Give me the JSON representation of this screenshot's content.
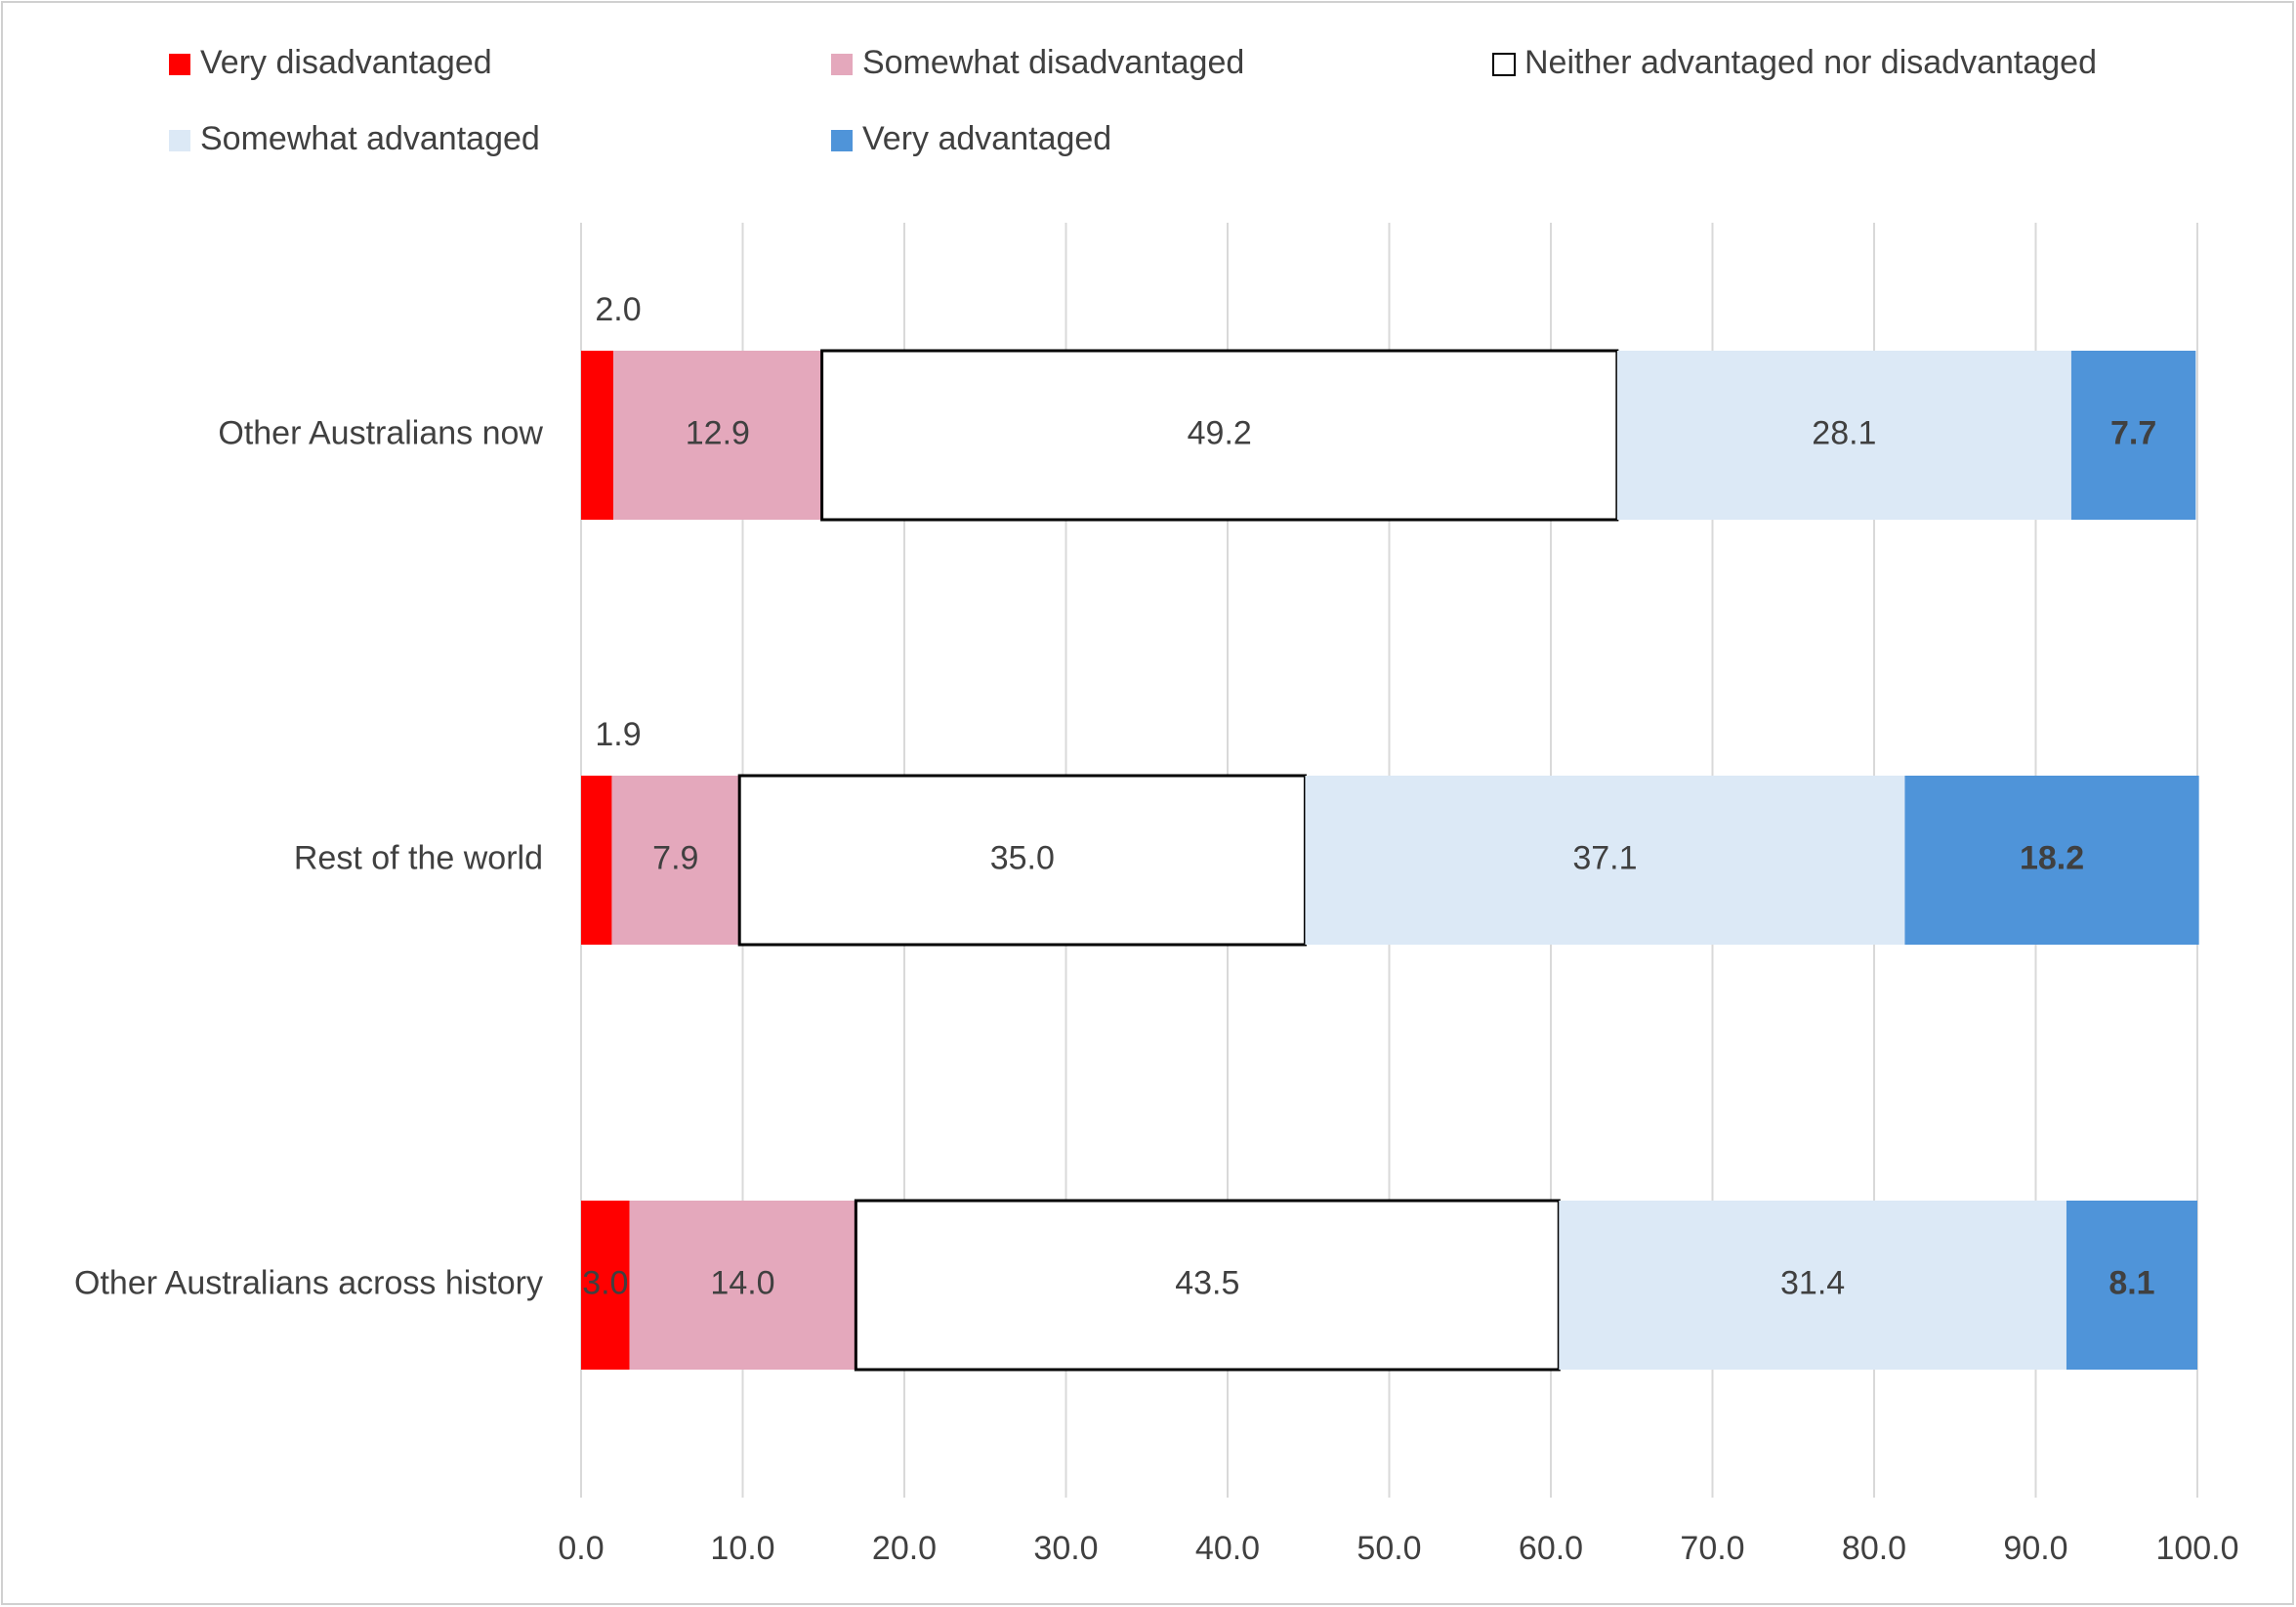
{
  "chart_data": {
    "type": "stacked_barh",
    "categories": [
      "Other Australians now",
      "Rest of the world",
      "Other Australians across history"
    ],
    "series": [
      {
        "name": "Very disadvantaged",
        "color": "#ff0000",
        "values": [
          2.0,
          1.9,
          3.0
        ],
        "value_labels": [
          "2.0",
          "1.9",
          "3.0"
        ]
      },
      {
        "name": "Somewhat disadvantaged",
        "color": "#e4a8bc",
        "values": [
          12.9,
          7.9,
          14.0
        ],
        "value_labels": [
          "12.9",
          "7.9",
          "14.0"
        ]
      },
      {
        "name": "Neither advantaged nor disadvantaged",
        "color": "#ffffff",
        "edgecolor": "#000000",
        "values": [
          49.2,
          35.0,
          43.5
        ],
        "value_labels": [
          "49.2",
          "35.0",
          "43.5"
        ]
      },
      {
        "name": "Somewhat advantaged",
        "color": "#dce9f6",
        "values": [
          28.1,
          37.1,
          31.4
        ],
        "value_labels": [
          "28.1",
          "37.1",
          "31.4"
        ]
      },
      {
        "name": "Very advantaged",
        "color": "#4f94d9",
        "values": [
          7.7,
          18.2,
          8.1
        ],
        "value_labels": [
          "7.7",
          "18.2",
          "8.1"
        ]
      }
    ],
    "xlim": [
      0,
      100
    ],
    "xticks": [
      {
        "value": 0,
        "label": "0.0"
      },
      {
        "value": 10,
        "label": "10.0"
      },
      {
        "value": 20,
        "label": "20.0"
      },
      {
        "value": 30,
        "label": "30.0"
      },
      {
        "value": 40,
        "label": "40.0"
      },
      {
        "value": 50,
        "label": "50.0"
      },
      {
        "value": 60,
        "label": "60.0"
      },
      {
        "value": 70,
        "label": "70.0"
      },
      {
        "value": 80,
        "label": "80.0"
      },
      {
        "value": 90,
        "label": "90.0"
      },
      {
        "value": 100,
        "label": "100.0"
      }
    ],
    "grid": true,
    "legend": "top"
  }
}
